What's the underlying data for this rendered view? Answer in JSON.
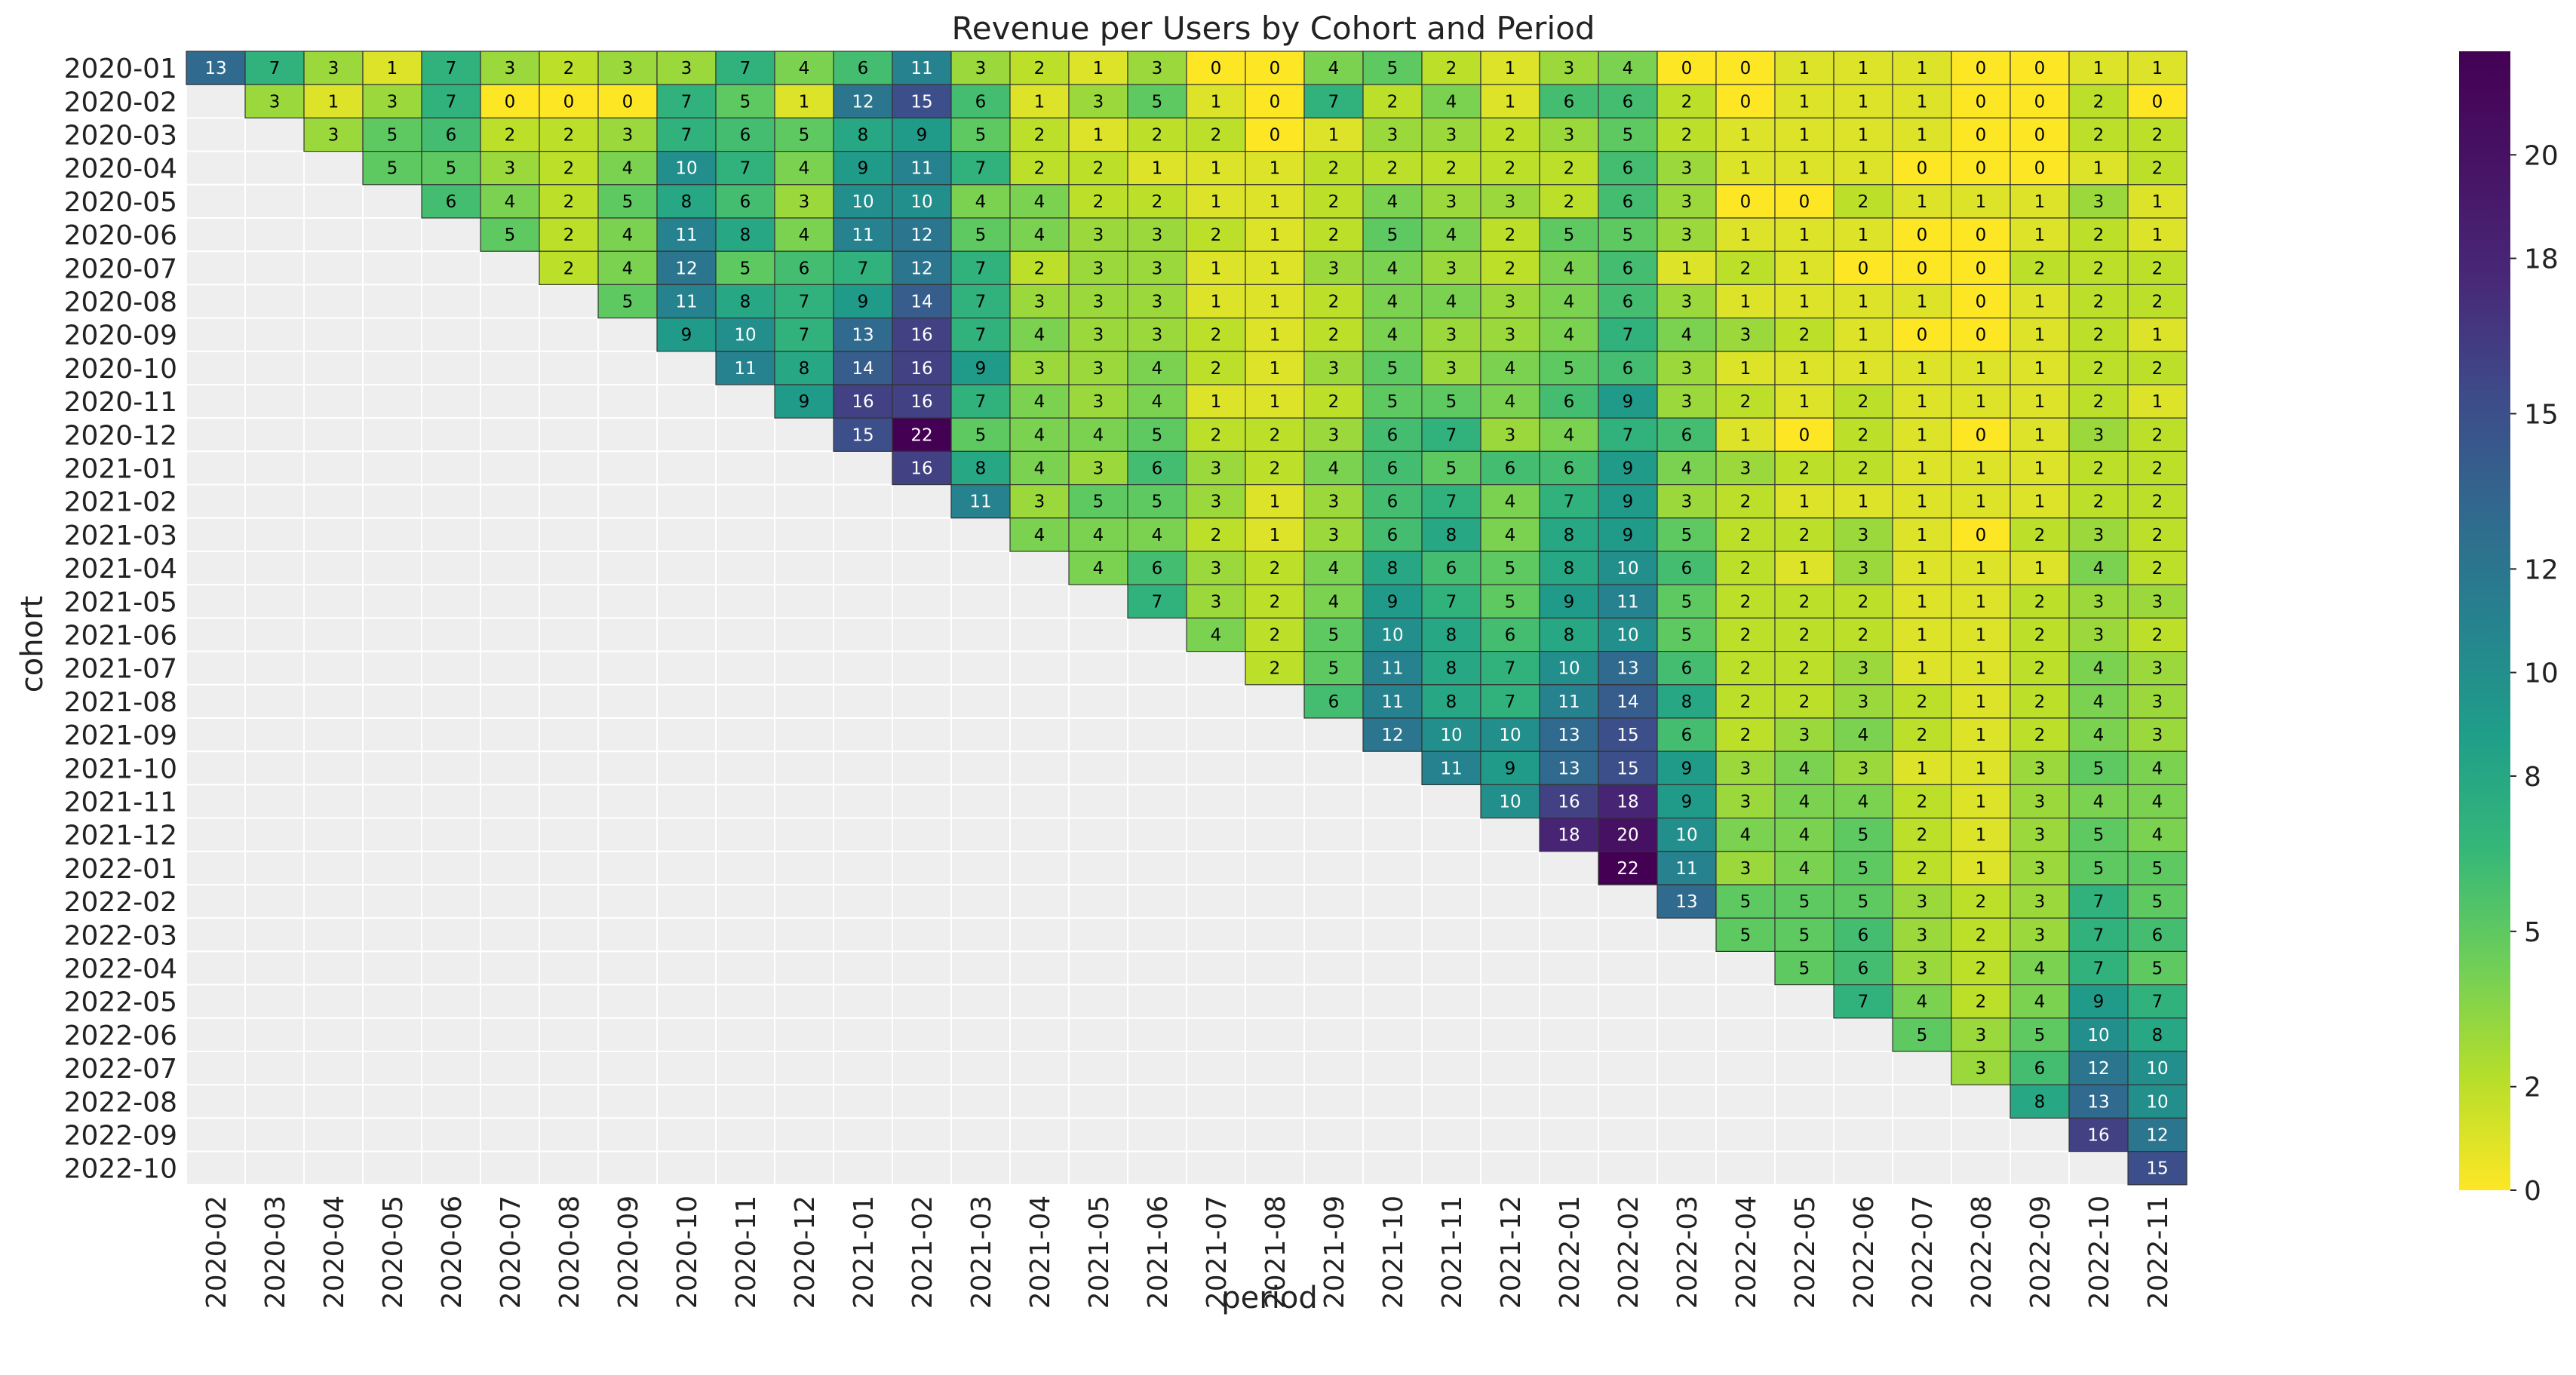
{
  "chart_data": {
    "type": "heatmap",
    "title": "Revenue per Users by Cohort and Period",
    "xlabel": "period",
    "ylabel": "cohort",
    "x_categories": [
      "2020-02",
      "2020-03",
      "2020-04",
      "2020-05",
      "2020-06",
      "2020-07",
      "2020-08",
      "2020-09",
      "2020-10",
      "2020-11",
      "2020-12",
      "2021-01",
      "2021-02",
      "2021-03",
      "2021-04",
      "2021-05",
      "2021-06",
      "2021-07",
      "2021-08",
      "2021-09",
      "2021-10",
      "2021-11",
      "2021-12",
      "2022-01",
      "2022-02",
      "2022-03",
      "2022-04",
      "2022-05",
      "2022-06",
      "2022-07",
      "2022-08",
      "2022-09",
      "2022-10",
      "2022-11"
    ],
    "y_categories": [
      "2020-01",
      "2020-02",
      "2020-03",
      "2020-04",
      "2020-05",
      "2020-06",
      "2020-07",
      "2020-08",
      "2020-09",
      "2020-10",
      "2020-11",
      "2020-12",
      "2021-01",
      "2021-02",
      "2021-03",
      "2021-04",
      "2021-05",
      "2021-06",
      "2021-07",
      "2021-08",
      "2021-09",
      "2021-10",
      "2021-11",
      "2021-12",
      "2022-01",
      "2022-02",
      "2022-03",
      "2022-04",
      "2022-05",
      "2022-06",
      "2022-07",
      "2022-08",
      "2022-09",
      "2022-10"
    ],
    "values": [
      [
        13,
        7,
        3,
        1,
        7,
        3,
        2,
        3,
        3,
        7,
        4,
        6,
        11,
        3,
        2,
        1,
        3,
        0,
        0,
        4,
        5,
        2,
        1,
        3,
        4,
        0,
        0,
        1,
        1,
        1,
        0,
        0,
        1,
        1
      ],
      [
        3,
        1,
        3,
        7,
        0,
        0,
        0,
        7,
        5,
        1,
        12,
        15,
        6,
        1,
        3,
        5,
        1,
        0,
        7,
        2,
        4,
        1,
        6,
        6,
        2,
        0,
        1,
        1,
        1,
        0,
        0,
        2,
        0
      ],
      [
        3,
        5,
        6,
        2,
        2,
        3,
        7,
        6,
        5,
        8,
        9,
        5,
        2,
        1,
        2,
        2,
        0,
        1,
        3,
        3,
        2,
        3,
        5,
        2,
        1,
        1,
        1,
        1,
        0,
        0,
        2,
        2
      ],
      [
        5,
        5,
        3,
        2,
        4,
        10,
        7,
        4,
        9,
        11,
        7,
        2,
        2,
        1,
        1,
        1,
        2,
        2,
        2,
        2,
        2,
        6,
        3,
        1,
        1,
        1,
        0,
        0,
        0,
        1,
        2
      ],
      [
        6,
        4,
        2,
        5,
        8,
        6,
        3,
        10,
        10,
        4,
        4,
        2,
        2,
        1,
        1,
        2,
        4,
        3,
        3,
        2,
        6,
        3,
        0,
        0,
        2,
        1,
        1,
        1,
        3,
        1
      ],
      [
        5,
        2,
        4,
        11,
        8,
        4,
        11,
        12,
        5,
        4,
        3,
        3,
        2,
        1,
        2,
        5,
        4,
        2,
        5,
        5,
        3,
        1,
        1,
        1,
        0,
        0,
        1,
        2,
        1
      ],
      [
        2,
        4,
        12,
        5,
        6,
        7,
        12,
        7,
        2,
        3,
        3,
        1,
        1,
        3,
        4,
        3,
        2,
        4,
        6,
        1,
        2,
        1,
        0,
        0,
        0,
        2,
        2,
        2
      ],
      [
        5,
        11,
        8,
        7,
        9,
        14,
        7,
        3,
        3,
        3,
        1,
        1,
        2,
        4,
        4,
        3,
        4,
        6,
        3,
        1,
        1,
        1,
        1,
        0,
        1,
        2,
        2
      ],
      [
        9,
        10,
        7,
        13,
        16,
        7,
        4,
        3,
        3,
        2,
        1,
        2,
        4,
        3,
        3,
        4,
        7,
        4,
        3,
        2,
        1,
        0,
        0,
        1,
        2,
        1
      ],
      [
        11,
        8,
        14,
        16,
        9,
        3,
        3,
        4,
        2,
        1,
        3,
        5,
        3,
        4,
        5,
        6,
        3,
        1,
        1,
        1,
        1,
        1,
        1,
        2,
        2
      ],
      [
        9,
        16,
        16,
        7,
        4,
        3,
        4,
        1,
        1,
        2,
        5,
        5,
        4,
        6,
        9,
        3,
        2,
        1,
        2,
        1,
        1,
        1,
        2,
        1
      ],
      [
        15,
        22,
        5,
        4,
        4,
        5,
        2,
        2,
        3,
        6,
        7,
        3,
        4,
        7,
        6,
        1,
        0,
        2,
        1,
        0,
        1,
        3,
        2
      ],
      [
        16,
        8,
        4,
        3,
        6,
        3,
        2,
        4,
        6,
        5,
        6,
        6,
        9,
        4,
        3,
        2,
        2,
        1,
        1,
        1,
        2,
        2
      ],
      [
        11,
        3,
        5,
        5,
        3,
        1,
        3,
        6,
        7,
        4,
        7,
        9,
        3,
        2,
        1,
        1,
        1,
        1,
        1,
        2,
        2
      ],
      [
        4,
        4,
        4,
        2,
        1,
        3,
        6,
        8,
        4,
        8,
        9,
        5,
        2,
        2,
        3,
        1,
        0,
        2,
        3,
        2
      ],
      [
        4,
        6,
        3,
        2,
        4,
        8,
        6,
        5,
        8,
        10,
        6,
        2,
        1,
        3,
        1,
        1,
        1,
        4,
        2
      ],
      [
        7,
        3,
        2,
        4,
        9,
        7,
        5,
        9,
        11,
        5,
        2,
        2,
        2,
        1,
        1,
        2,
        3,
        3
      ],
      [
        4,
        2,
        5,
        10,
        8,
        6,
        8,
        10,
        5,
        2,
        2,
        2,
        1,
        1,
        2,
        3,
        2
      ],
      [
        2,
        5,
        11,
        8,
        7,
        10,
        13,
        6,
        2,
        2,
        3,
        1,
        1,
        2,
        4,
        3
      ],
      [
        6,
        11,
        8,
        7,
        11,
        14,
        8,
        2,
        2,
        3,
        2,
        1,
        2,
        4,
        3
      ],
      [
        12,
        10,
        10,
        13,
        15,
        6,
        2,
        3,
        4,
        2,
        1,
        2,
        4,
        3
      ],
      [
        11,
        9,
        13,
        15,
        9,
        3,
        4,
        3,
        1,
        1,
        3,
        5,
        4
      ],
      [
        10,
        16,
        18,
        9,
        3,
        4,
        4,
        2,
        1,
        3,
        4,
        4
      ],
      [
        18,
        20,
        10,
        4,
        4,
        5,
        2,
        1,
        3,
        5,
        4
      ],
      [
        22,
        11,
        3,
        4,
        5,
        2,
        1,
        3,
        5,
        5
      ],
      [
        13,
        5,
        5,
        5,
        3,
        2,
        3,
        7,
        5
      ],
      [
        5,
        5,
        6,
        3,
        2,
        3,
        7,
        6
      ],
      [
        5,
        6,
        3,
        2,
        4,
        7,
        5
      ],
      [
        7,
        4,
        2,
        4,
        9,
        7
      ],
      [
        5,
        3,
        5,
        10,
        8
      ],
      [
        3,
        6,
        12,
        10
      ],
      [
        8,
        13,
        10
      ],
      [
        16,
        12
      ],
      [
        15
      ]
    ],
    "colormap": "viridis_r",
    "colorbar_range": [
      0,
      22
    ],
    "colorbar_ticks": [
      0,
      2,
      5,
      8,
      10,
      12,
      15,
      18,
      20
    ]
  },
  "colors": {
    "background": "#ffffff",
    "empty_cell": "#eeeeee",
    "cell_border": "#333333",
    "text_dark": "#000000",
    "text_light": "#ffffff"
  }
}
